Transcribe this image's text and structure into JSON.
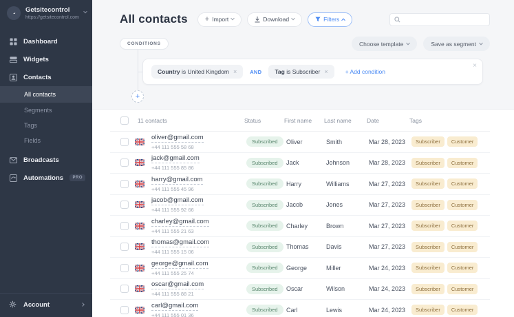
{
  "colors": {
    "accent": "#4a8af4",
    "sidebar_bg": "#2e3746",
    "status_bg": "#e6f3eb",
    "status_text": "#55836a",
    "tag_bg": "#f9ecd0",
    "tag_text": "#8d6f3e"
  },
  "sidebar": {
    "brand": {
      "name": "Getsitecontrol",
      "url": "https://getsitecontrol.com"
    },
    "items": {
      "dashboard": "Dashboard",
      "widgets": "Widgets",
      "contacts": "Contacts",
      "all_contacts": "All contacts",
      "segments": "Segments",
      "tags": "Tags",
      "fields": "Fields",
      "broadcasts": "Broadcasts",
      "automations": "Automations",
      "pro_badge": "PRO",
      "account": "Account"
    }
  },
  "header": {
    "title": "All contacts",
    "import_label": "Import",
    "download_label": "Download",
    "filters_label": "Filters"
  },
  "filters": {
    "conditions_label": "CONDITIONS",
    "choose_template_label": "Choose template",
    "save_segment_label": "Save as segment",
    "condition_1": {
      "field": "Country",
      "rest": "is United Kingdom"
    },
    "operator": "AND",
    "condition_2": {
      "field": "Tag",
      "rest": "is Subscriber"
    },
    "add_condition_label": "+ Add condition"
  },
  "table": {
    "count_label": "11 contacts",
    "columns": {
      "status": "Status",
      "first": "First name",
      "last": "Last name",
      "date": "Date",
      "tags": "Tags"
    },
    "rows": [
      {
        "email": "oliver@gmail.com",
        "phone": "+44 111 555 58 68",
        "status": "Subscribed",
        "first_name": "Oliver",
        "last_name": "Smith",
        "date": "Mar 28, 2023",
        "tags": [
          "Subscriber",
          "Customer"
        ]
      },
      {
        "email": "jack@gmail.com",
        "phone": "+44 111 555 85 86",
        "status": "Subscribed",
        "first_name": "Jack",
        "last_name": "Johnson",
        "date": "Mar 28, 2023",
        "tags": [
          "Subscriber",
          "Customer"
        ]
      },
      {
        "email": "harry@gmail.com",
        "phone": "+44 111 555 45 96",
        "status": "Subscribed",
        "first_name": "Harry",
        "last_name": "Williams",
        "date": "Mar 27, 2023",
        "tags": [
          "Subscriber",
          "Customer"
        ]
      },
      {
        "email": "jacob@gmail.com",
        "phone": "+44 111 555 92 66",
        "status": "Subscribed",
        "first_name": "Jacob",
        "last_name": "Jones",
        "date": "Mar 27, 2023",
        "tags": [
          "Subscriber",
          "Customer"
        ]
      },
      {
        "email": "charley@gmail.com",
        "phone": "+44 111 555 21 63",
        "status": "Subscribed",
        "first_name": "Charley",
        "last_name": "Brown",
        "date": "Mar 27, 2023",
        "tags": [
          "Subscriber",
          "Customer"
        ]
      },
      {
        "email": "thomas@gmail.com",
        "phone": "+44 111 555 15 06",
        "status": "Subscribed",
        "first_name": "Thomas",
        "last_name": "Davis",
        "date": "Mar 27, 2023",
        "tags": [
          "Subscriber",
          "Customer"
        ]
      },
      {
        "email": "george@gmail.com",
        "phone": "+44 111 555 25 74",
        "status": "Subscribed",
        "first_name": "George",
        "last_name": "Miller",
        "date": "Mar 24, 2023",
        "tags": [
          "Subscriber",
          "Customer"
        ]
      },
      {
        "email": "oscar@gmail.com",
        "phone": "+44 111 555 88 21",
        "status": "Subscribed",
        "first_name": "Oscar",
        "last_name": "Wilson",
        "date": "Mar 24, 2023",
        "tags": [
          "Subscriber",
          "Customer"
        ]
      },
      {
        "email": "carl@gmail.com",
        "phone": "+44 111 555 01 36",
        "status": "Subscribed",
        "first_name": "Carl",
        "last_name": "Lewis",
        "date": "Mar 24, 2023",
        "tags": [
          "Subscriber",
          "Customer"
        ]
      }
    ]
  }
}
